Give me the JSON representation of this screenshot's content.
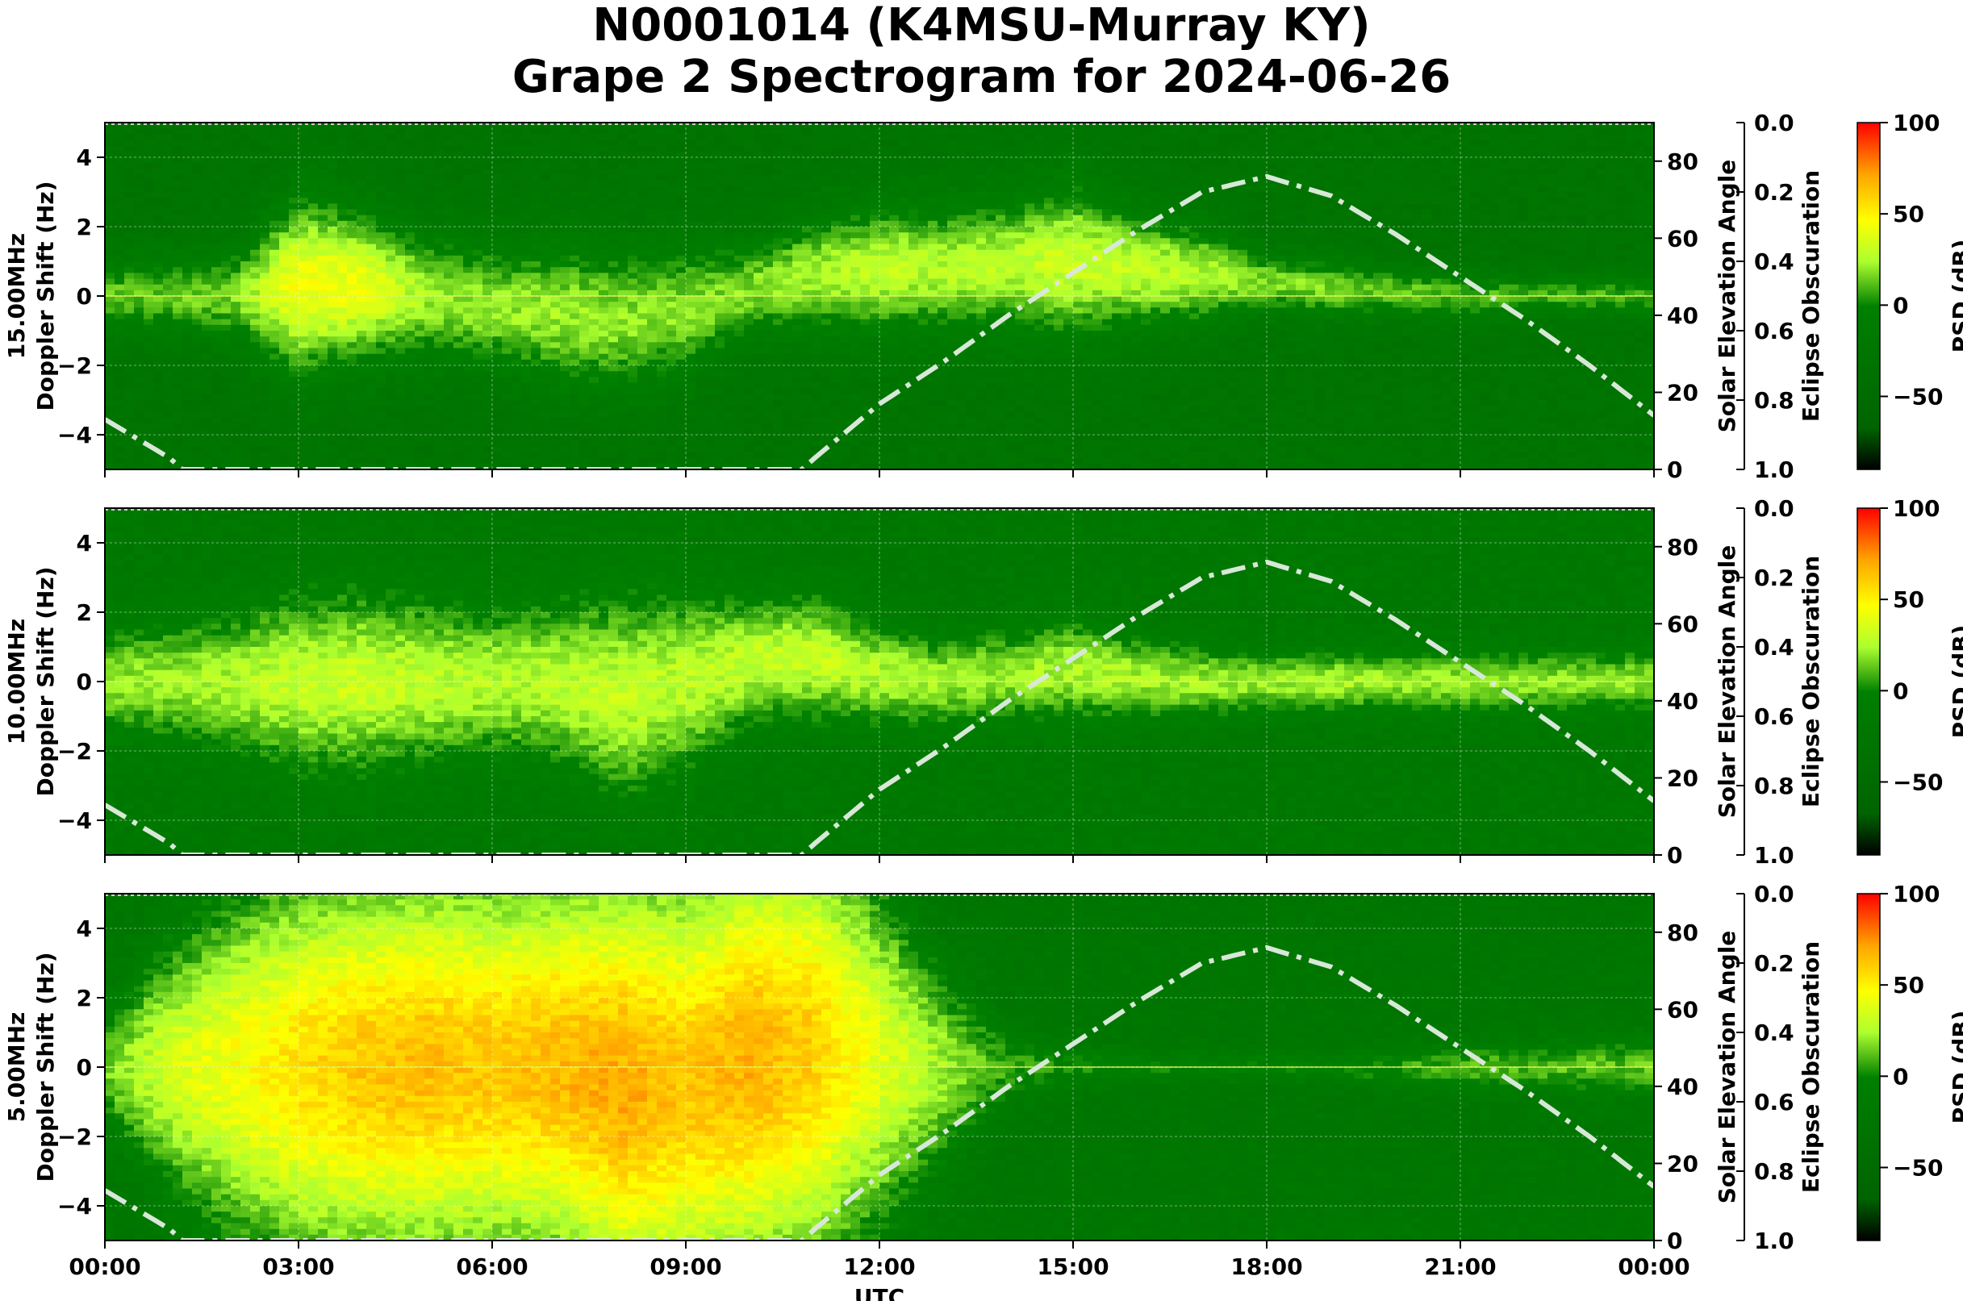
{
  "title": "N0001014 (K4MSU-Murray KY)",
  "subtitle": "Grape 2 Spectrogram for 2024-06-26",
  "chart_data": {
    "type": "heatmap",
    "xlabel": "UTC",
    "x_ticks": [
      "00:00",
      "03:00",
      "06:00",
      "09:00",
      "12:00",
      "15:00",
      "18:00",
      "21:00",
      "00:00"
    ],
    "xlim_hours": [
      0,
      24
    ],
    "right_axis": {
      "label": "Solar Elevation Angle",
      "ylim": [
        0,
        90
      ],
      "ticks": [
        0,
        20,
        40,
        60,
        80
      ]
    },
    "eclipse_axis": {
      "label": "Eclipse Obscuration",
      "ylim": [
        1.0,
        0.0
      ],
      "ticks": [
        "0.0",
        "0.2",
        "0.4",
        "0.6",
        "0.8",
        "1.0"
      ]
    },
    "colorbar": {
      "label": "PSD (dB)",
      "range": [
        -90,
        100
      ],
      "ticks": [
        100,
        50,
        0,
        -50
      ],
      "colors": [
        "#000000",
        "#006400",
        "#008000",
        "#adff2f",
        "#ffff00",
        "#ffa500",
        "#ff0000"
      ]
    },
    "grid": true,
    "solar_elevation_style": {
      "color": "#d8e8d8",
      "dash": "dash-dot"
    },
    "solar_elevation": {
      "hours": [
        0,
        1,
        1.2,
        10.8,
        11,
        12,
        13,
        14,
        15,
        16,
        17,
        18,
        19,
        20,
        21,
        22,
        23,
        24
      ],
      "degrees": [
        13,
        3,
        0,
        0,
        3,
        17,
        28,
        40,
        51,
        62,
        72,
        76,
        71,
        61,
        50,
        39,
        27,
        14
      ]
    },
    "panels": [
      {
        "ylabel": "15.00MHz\nDoppler Shift (Hz)",
        "ylim": [
          -5,
          5
        ],
        "yticks": [
          4,
          2,
          0,
          -2,
          -4
        ],
        "intensity": {
          "hours": [
            0,
            1,
            2,
            3,
            4,
            5,
            6,
            7,
            8,
            9,
            10,
            11,
            12,
            13,
            14,
            15,
            16,
            17,
            18,
            19,
            20,
            21,
            22,
            23,
            24
          ],
          "psd_db": [
            12,
            14,
            16,
            45,
            42,
            22,
            20,
            22,
            20,
            18,
            18,
            24,
            30,
            26,
            28,
            32,
            30,
            26,
            18,
            16,
            14,
            10,
            8,
            8,
            8
          ],
          "spread_hz": [
            0.7,
            0.8,
            1.0,
            1.8,
            1.5,
            1.3,
            1.3,
            1.5,
            1.5,
            1.4,
            1.0,
            1.2,
            1.3,
            1.3,
            1.4,
            1.6,
            1.2,
            1.0,
            0.6,
            0.6,
            0.5,
            0.5,
            0.4,
            0.4,
            0.4
          ],
          "center_hz": [
            0,
            0,
            0,
            0.3,
            0.3,
            0,
            -0.3,
            -0.5,
            -0.7,
            -0.4,
            0.2,
            0.6,
            0.8,
            0.8,
            0.9,
            1.0,
            0.8,
            0.6,
            0.4,
            0.2,
            0.1,
            0,
            0,
            0,
            0
          ]
        },
        "background_db": -30
      },
      {
        "ylabel": "10.00MHz\nDoppler Shift (Hz)",
        "ylim": [
          -5,
          5
        ],
        "yticks": [
          4,
          2,
          0,
          -2,
          -4
        ],
        "intensity": {
          "hours": [
            0,
            1,
            2,
            3,
            4,
            5,
            6,
            7,
            8,
            9,
            10,
            11,
            12,
            13,
            14,
            15,
            16,
            17,
            18,
            19,
            20,
            21,
            22,
            23,
            24
          ],
          "psd_db": [
            20,
            22,
            25,
            30,
            32,
            28,
            26,
            28,
            30,
            28,
            30,
            32,
            26,
            22,
            22,
            26,
            24,
            22,
            22,
            24,
            22,
            22,
            20,
            20,
            20
          ],
          "spread_hz": [
            1.0,
            1.2,
            1.4,
            1.8,
            1.8,
            1.6,
            1.5,
            1.6,
            2.0,
            1.8,
            1.2,
            1.2,
            1.0,
            0.9,
            0.9,
            1.0,
            0.8,
            0.7,
            0.6,
            0.6,
            0.6,
            0.6,
            0.6,
            0.6,
            0.6
          ],
          "center_hz": [
            0,
            0,
            0,
            0,
            0,
            0,
            0,
            0,
            -0.4,
            0,
            0.6,
            0.7,
            0.2,
            0,
            0.2,
            0.4,
            0.1,
            0,
            0,
            0,
            0,
            0,
            0,
            0,
            0
          ]
        },
        "background_db": -20
      },
      {
        "ylabel": "5.00MHz\nDoppler Shift (Hz)",
        "ylim": [
          -5,
          5
        ],
        "yticks": [
          4,
          2,
          0,
          -2,
          -4
        ],
        "intensity": {
          "hours": [
            0,
            1,
            2,
            3,
            4,
            5,
            6,
            7,
            8,
            9,
            10,
            11,
            12,
            13,
            14,
            15,
            16,
            17,
            18,
            19,
            20,
            21,
            22,
            23,
            24
          ],
          "psd_db": [
            15,
            35,
            45,
            55,
            62,
            65,
            62,
            66,
            70,
            62,
            68,
            60,
            40,
            22,
            5,
            0,
            0,
            -5,
            -5,
            0,
            5,
            10,
            10,
            12,
            12
          ],
          "spread_hz": [
            1.2,
            2.5,
            3.5,
            4.0,
            4.0,
            4.0,
            4.0,
            4.0,
            4.5,
            4.5,
            4.5,
            4.5,
            3.5,
            2.0,
            0.8,
            0.4,
            0.3,
            0.3,
            0.3,
            0.3,
            0.4,
            0.5,
            0.5,
            0.6,
            0.6
          ],
          "center_hz": [
            0,
            0,
            0,
            0,
            0,
            0,
            0,
            0,
            -0.5,
            -0.5,
            0.2,
            0.5,
            0.3,
            0,
            0,
            0,
            0,
            0,
            0,
            0,
            0,
            0,
            0,
            0,
            0
          ]
        },
        "background_db": -25
      }
    ]
  }
}
